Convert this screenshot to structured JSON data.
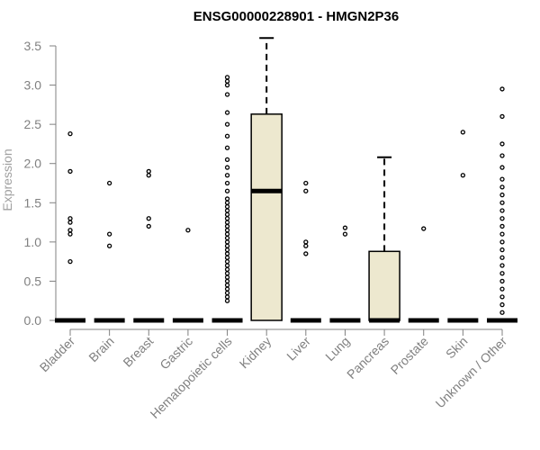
{
  "chart_data": {
    "type": "boxplot",
    "title": "ENSG00000228901 - HMGN2P36",
    "ylabel": "Expression",
    "xlabel": "",
    "ylim": [
      0,
      3.6
    ],
    "yticks": [
      "0.0",
      "0.5",
      "1.0",
      "1.5",
      "2.0",
      "2.5",
      "3.0",
      "3.5"
    ],
    "box_fill": "#ede8cf",
    "outlier_color": "#000000",
    "grid": false,
    "categories": [
      {
        "name": "Bladder",
        "q1": 0,
        "median": 0,
        "q3": 0,
        "whisker_low": 0,
        "whisker_high": 0,
        "outliers": [
          0.75,
          1.1,
          1.15,
          1.25,
          1.3,
          1.9,
          2.38
        ]
      },
      {
        "name": "Brain",
        "q1": 0,
        "median": 0,
        "q3": 0,
        "whisker_low": 0,
        "whisker_high": 0,
        "outliers": [
          0.95,
          1.1,
          1.75
        ]
      },
      {
        "name": "Breast",
        "q1": 0,
        "median": 0,
        "q3": 0,
        "whisker_low": 0,
        "whisker_high": 0,
        "outliers": [
          1.2,
          1.3,
          1.85,
          1.9
        ]
      },
      {
        "name": "Gastric",
        "q1": 0,
        "median": 0,
        "q3": 0,
        "whisker_low": 0,
        "whisker_high": 0,
        "outliers": [
          1.15
        ]
      },
      {
        "name": "Hematopoietic cells",
        "q1": 0,
        "median": 0,
        "q3": 0,
        "whisker_low": 0,
        "whisker_high": 0,
        "outliers": [
          0.25,
          0.3,
          0.35,
          0.4,
          0.45,
          0.5,
          0.55,
          0.6,
          0.65,
          0.7,
          0.75,
          0.8,
          0.85,
          0.9,
          0.95,
          1.0,
          1.05,
          1.1,
          1.15,
          1.2,
          1.25,
          1.3,
          1.35,
          1.4,
          1.45,
          1.5,
          1.55,
          1.65,
          1.75,
          1.85,
          1.95,
          2.05,
          2.2,
          2.35,
          2.5,
          2.65,
          2.88,
          3.0,
          3.05,
          3.1
        ]
      },
      {
        "name": "Kidney",
        "q1": 0,
        "median": 1.65,
        "q3": 2.63,
        "whisker_low": 0,
        "whisker_high": 3.6,
        "outliers": []
      },
      {
        "name": "Liver",
        "q1": 0,
        "median": 0,
        "q3": 0,
        "whisker_low": 0,
        "whisker_high": 0,
        "outliers": [
          0.85,
          0.95,
          1.0,
          1.65,
          1.75
        ]
      },
      {
        "name": "Lung",
        "q1": 0,
        "median": 0,
        "q3": 0,
        "whisker_low": 0,
        "whisker_high": 0,
        "outliers": [
          1.1,
          1.18
        ]
      },
      {
        "name": "Pancreas",
        "q1": 0,
        "median": 0,
        "q3": 0.88,
        "whisker_low": 0,
        "whisker_high": 2.08,
        "outliers": []
      },
      {
        "name": "Prostate",
        "q1": 0,
        "median": 0,
        "q3": 0,
        "whisker_low": 0,
        "whisker_high": 0,
        "outliers": [
          1.17
        ]
      },
      {
        "name": "Skin",
        "q1": 0,
        "median": 0,
        "q3": 0,
        "whisker_low": 0,
        "whisker_high": 0,
        "outliers": [
          1.85,
          2.4
        ]
      },
      {
        "name": "Unknown / Other",
        "q1": 0,
        "median": 0,
        "q3": 0,
        "whisker_low": 0,
        "whisker_high": 0,
        "outliers": [
          0.1,
          0.2,
          0.3,
          0.4,
          0.5,
          0.6,
          0.7,
          0.8,
          0.9,
          1.0,
          1.1,
          1.2,
          1.3,
          1.4,
          1.5,
          1.6,
          1.7,
          1.8,
          1.95,
          2.1,
          2.25,
          2.6,
          2.95
        ]
      }
    ]
  }
}
